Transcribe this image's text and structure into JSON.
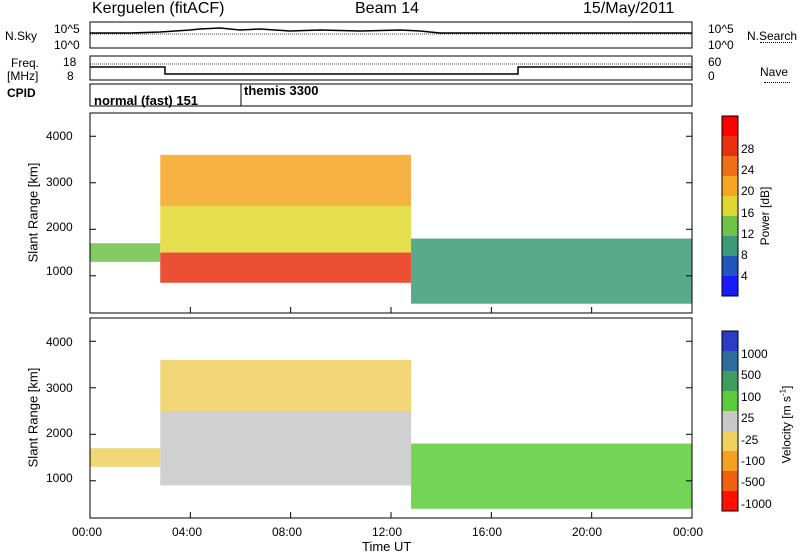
{
  "header": {
    "station": "Kerguelen (fitACF)",
    "beam": "Beam 14",
    "date": "15/May/2011"
  },
  "top_panel": {
    "nsky_label": "N.Sky",
    "nsky_tick_high": "10^5",
    "nsky_tick_low": "10^0",
    "nsearch_label": "N.Search",
    "nsearch_tick_high": "10^5",
    "nsearch_tick_low": "10^0",
    "freq_label": "Freq.",
    "freq_unit": "[MHz]",
    "freq_tick_high": "18",
    "freq_tick_low": "8",
    "nave_label": "Nave",
    "nave_tick_high": "60",
    "nave_tick_low": "0",
    "cpid_label": "CPID",
    "cpid_modes": [
      {
        "name": "normal (fast) 151",
        "start_hour": 0.0
      },
      {
        "name": "themis 3300",
        "start_hour": 6.0
      }
    ]
  },
  "x_axis": {
    "label": "Time UT",
    "ticks": [
      "00:00",
      "04:00",
      "08:00",
      "12:00",
      "16:00",
      "20:00",
      "00:00"
    ]
  },
  "power_panel": {
    "ylabel": "Slant Range [km]",
    "yticks": [
      "1000",
      "2000",
      "3000",
      "4000"
    ],
    "colorbar_label": "Power [dB]",
    "colorbar_ticks": [
      "4",
      "8",
      "12",
      "16",
      "20",
      "24",
      "28"
    ],
    "colors": [
      "#1a1aff",
      "#2255bb",
      "#3c9a78",
      "#6fc24a",
      "#e0d830",
      "#f5a623",
      "#f07018",
      "#e83010",
      "#ff0000"
    ]
  },
  "velocity_panel": {
    "ylabel": "Slant Range [km]",
    "yticks": [
      "1000",
      "2000",
      "3000",
      "4000"
    ],
    "colorbar_label": "Velocity [m s",
    "colorbar_sup": "-1",
    "colorbar_label_end": "]",
    "colorbar_ticks": [
      "1000",
      "500",
      "100",
      "25",
      "-25",
      "-100",
      "-500",
      "-1000"
    ],
    "colors": [
      "#2a3cc8",
      "#2e6e9e",
      "#3f9e5e",
      "#5bcc3a",
      "#c8c8c8",
      "#f0d060",
      "#f5a020",
      "#f06010",
      "#ff1000"
    ]
  },
  "chart_data": [
    {
      "type": "heatmap",
      "title": "Beam 14",
      "xlabel": "Time UT",
      "ylabel": "Slant Range [km]",
      "xlim": [
        0,
        24
      ],
      "ylim": [
        200,
        4500
      ],
      "colorbar": {
        "label": "Power [dB]",
        "range": [
          0,
          32
        ]
      },
      "regions": [
        {
          "x": [
            0.0,
            2.8
          ],
          "y": [
            1300,
            1700
          ],
          "value": 10
        },
        {
          "x": [
            2.8,
            12.8
          ],
          "y": [
            850,
            1500
          ],
          "value": 26
        },
        {
          "x": [
            2.8,
            12.8
          ],
          "y": [
            1500,
            2500
          ],
          "value": 14
        },
        {
          "x": [
            2.8,
            12.8
          ],
          "y": [
            2500,
            3600
          ],
          "value": 20
        },
        {
          "x": [
            12.8,
            24.0
          ],
          "y": [
            400,
            1800
          ],
          "value": 6
        }
      ]
    },
    {
      "type": "heatmap",
      "title": "Beam 14",
      "xlabel": "Time UT",
      "ylabel": "Slant Range [km]",
      "xlim": [
        0,
        24
      ],
      "ylim": [
        200,
        4500
      ],
      "colorbar": {
        "label": "Velocity [m s-1]",
        "range": [
          -1000,
          1000
        ]
      },
      "regions": [
        {
          "x": [
            0.0,
            2.8
          ],
          "y": [
            1300,
            1700
          ],
          "value": -150
        },
        {
          "x": [
            2.8,
            12.8
          ],
          "y": [
            900,
            2500
          ],
          "value": 0
        },
        {
          "x": [
            2.8,
            12.8
          ],
          "y": [
            2500,
            3600
          ],
          "value": -300
        },
        {
          "x": [
            12.8,
            24.0
          ],
          "y": [
            400,
            1800
          ],
          "value": 150
        }
      ]
    }
  ]
}
